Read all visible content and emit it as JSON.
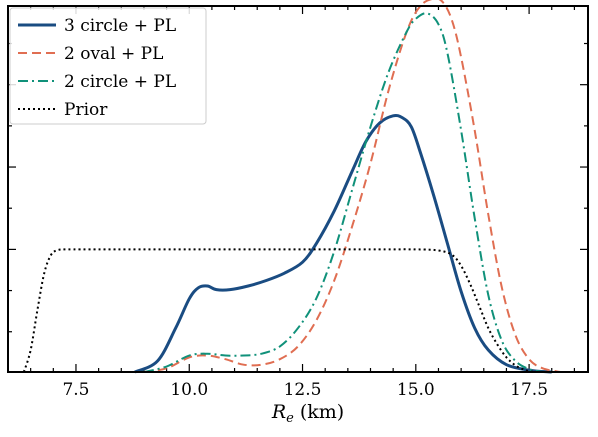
{
  "chart_data": {
    "type": "line",
    "xlabel_var": "R",
    "xlabel_sub": "e",
    "xlabel_unit": "(km)",
    "xlim": [
      6.0,
      18.8
    ],
    "ylim": [
      0,
      1.0
    ],
    "x_ticks": [
      7.5,
      10.0,
      12.5,
      15.0,
      17.5
    ],
    "x_tick_labels": [
      "7.5",
      "10.0",
      "12.5",
      "15.0",
      "17.5"
    ],
    "y_ticks": [
      0.11,
      0.2225,
      0.335,
      0.4475,
      0.56,
      0.6725,
      0.785,
      0.8975
    ],
    "y_major_ticks": [
      0.335,
      0.56,
      0.785
    ],
    "legend_position": "top-left",
    "series": [
      {
        "name": "3 circle + PL",
        "color": "#1a4c82",
        "dash": "solid",
        "x": [
          8.8,
          9.3,
          9.7,
          10.0,
          10.2,
          10.4,
          10.6,
          10.9,
          11.3,
          11.7,
          12.1,
          12.5,
          12.8,
          13.2,
          13.6,
          13.9,
          14.2,
          14.5,
          14.7,
          14.9,
          15.1,
          15.4,
          15.7,
          16.0,
          16.3,
          16.6,
          17.0,
          17.5,
          18.0
        ],
        "y": [
          0.0,
          0.03,
          0.12,
          0.2,
          0.23,
          0.235,
          0.225,
          0.225,
          0.235,
          0.25,
          0.27,
          0.3,
          0.35,
          0.44,
          0.55,
          0.63,
          0.68,
          0.7,
          0.695,
          0.67,
          0.6,
          0.48,
          0.35,
          0.22,
          0.12,
          0.06,
          0.02,
          0.005,
          0.0
        ]
      },
      {
        "name": "2 oval + PL",
        "color": "#e06e52",
        "dash": "dashed",
        "x": [
          9.0,
          9.5,
          10.0,
          10.4,
          10.8,
          11.2,
          11.6,
          12.0,
          12.4,
          12.8,
          13.2,
          13.6,
          14.0,
          14.4,
          14.8,
          15.1,
          15.4,
          15.6,
          15.8,
          16.0,
          16.3,
          16.6,
          16.9,
          17.2,
          17.5,
          17.8,
          18.2
        ],
        "y": [
          0.0,
          0.01,
          0.04,
          0.045,
          0.035,
          0.02,
          0.02,
          0.035,
          0.07,
          0.14,
          0.25,
          0.4,
          0.57,
          0.77,
          0.93,
          1.0,
          1.02,
          1.01,
          0.96,
          0.86,
          0.66,
          0.43,
          0.23,
          0.1,
          0.035,
          0.01,
          0.0
        ]
      },
      {
        "name": "2 circle + PL",
        "color": "#10917a",
        "dash": "dashdot",
        "x": [
          9.0,
          9.5,
          10.0,
          10.4,
          10.8,
          11.2,
          11.6,
          12.0,
          12.4,
          12.8,
          13.2,
          13.6,
          14.0,
          14.4,
          14.8,
          15.0,
          15.25,
          15.5,
          15.7,
          16.0,
          16.3,
          16.6,
          16.9,
          17.2,
          17.5,
          17.8
        ],
        "y": [
          0.0,
          0.015,
          0.045,
          0.05,
          0.045,
          0.045,
          0.05,
          0.07,
          0.12,
          0.2,
          0.33,
          0.5,
          0.67,
          0.82,
          0.93,
          0.965,
          0.98,
          0.95,
          0.87,
          0.66,
          0.42,
          0.21,
          0.085,
          0.03,
          0.008,
          0.0
        ]
      },
      {
        "name": "Prior",
        "color": "#000000",
        "dash": "dotted",
        "x": [
          6.35,
          6.5,
          6.65,
          6.8,
          6.95,
          7.1,
          7.3,
          7.6,
          8.0,
          10.0,
          12.0,
          14.0,
          15.0,
          15.5,
          15.8,
          16.0,
          16.2,
          16.4,
          16.6,
          16.8,
          17.0,
          17.2,
          17.4,
          17.6
        ],
        "y": [
          0.0,
          0.06,
          0.17,
          0.27,
          0.32,
          0.333,
          0.335,
          0.335,
          0.335,
          0.335,
          0.335,
          0.335,
          0.335,
          0.332,
          0.32,
          0.29,
          0.24,
          0.18,
          0.12,
          0.075,
          0.04,
          0.018,
          0.006,
          0.0
        ]
      }
    ]
  }
}
